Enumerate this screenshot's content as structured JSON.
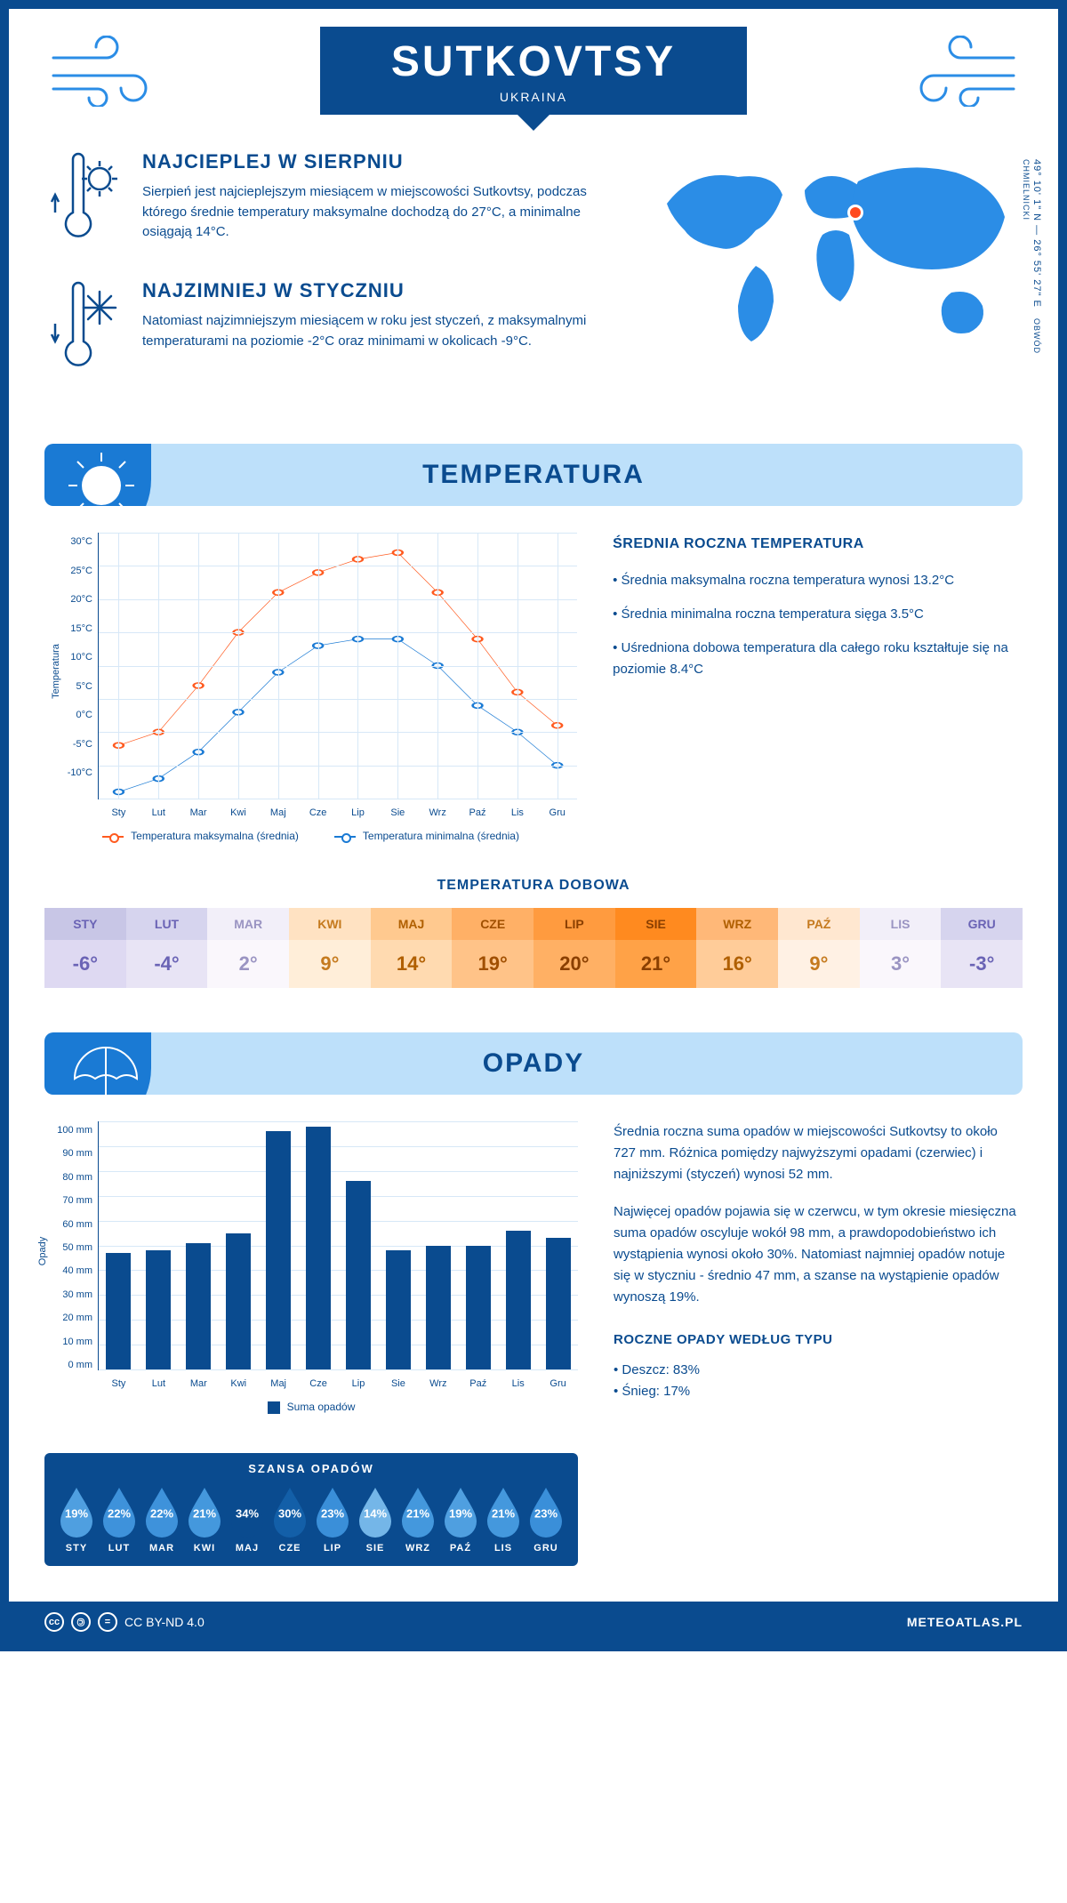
{
  "header": {
    "city": "SUTKOVTSY",
    "country": "UKRAINA"
  },
  "coords": "49° 10' 1\" N — 26° 55' 27\" E",
  "region": "OBWÓD CHMIELNICKI",
  "intro": {
    "hot_title": "NAJCIEPLEJ W SIERPNIU",
    "hot_text": "Sierpień jest najcieplejszym miesiącem w miejscowości Sutkovtsy, podczas którego średnie temperatury maksymalne dochodzą do 27°C, a minimalne osiągają 14°C.",
    "cold_title": "NAJZIMNIEJ W STYCZNIU",
    "cold_text": "Natomiast najzimniejszym miesiącem w roku jest styczeń, z maksymalnymi temperaturami na poziomie -2°C oraz minimami w okolicach -9°C."
  },
  "temperatura": {
    "section_title": "TEMPERATURA",
    "side_title": "ŚREDNIA ROCZNA TEMPERATURA",
    "b1": "• Średnia maksymalna roczna temperatura wynosi 13.2°C",
    "b2": "• Średnia minimalna roczna temperatura sięga 3.5°C",
    "b3": "• Uśredniona dobowa temperatura dla całego roku kształtuje się na poziomie 8.4°C",
    "chart": {
      "type": "line",
      "months": [
        "Sty",
        "Lut",
        "Mar",
        "Kwi",
        "Maj",
        "Cze",
        "Lip",
        "Sie",
        "Wrz",
        "Paź",
        "Lis",
        "Gru"
      ],
      "max_series": [
        -2,
        0,
        7,
        15,
        21,
        24,
        26,
        27,
        21,
        14,
        6,
        1
      ],
      "min_series": [
        -9,
        -7,
        -3,
        3,
        9,
        13,
        14,
        14,
        10,
        4,
        0,
        -5
      ],
      "max_color": "#ff5a1f",
      "min_color": "#1a7ad4",
      "ylim": [
        -10,
        30
      ],
      "ytick_step": 5,
      "ylabel": "Temperatura",
      "grid_color": "#d7e8f7",
      "legend_max": "Temperatura maksymalna (średnia)",
      "legend_min": "Temperatura minimalna (średnia)"
    },
    "dobowa_title": "TEMPERATURA DOBOWA",
    "dobowa": {
      "months": [
        "STY",
        "LUT",
        "MAR",
        "KWI",
        "MAJ",
        "CZE",
        "LIP",
        "SIE",
        "WRZ",
        "PAŹ",
        "LIS",
        "GRU"
      ],
      "values": [
        "-6°",
        "-4°",
        "2°",
        "9°",
        "14°",
        "19°",
        "20°",
        "21°",
        "16°",
        "9°",
        "3°",
        "-3°"
      ],
      "head_colors": [
        "#c8c6e6",
        "#d6d4ee",
        "#f2eff9",
        "#ffe2c2",
        "#ffc98f",
        "#ffb066",
        "#ff9b3f",
        "#ff8a1f",
        "#ffb878",
        "#ffe7d0",
        "#f2eff9",
        "#d6d4ee"
      ],
      "body_colors": [
        "#ded9f2",
        "#e8e4f5",
        "#faf7fc",
        "#ffeed9",
        "#ffdab0",
        "#ffc388",
        "#ffb064",
        "#ffa247",
        "#ffcc99",
        "#fff1e4",
        "#faf7fc",
        "#e8e4f5"
      ],
      "text_colors": [
        "#6a63b5",
        "#6a63b5",
        "#9a94c2",
        "#c57a1e",
        "#b05f00",
        "#a04f00",
        "#8a3f00",
        "#8a3f00",
        "#b05f00",
        "#c57a1e",
        "#9a94c2",
        "#6a63b5"
      ]
    }
  },
  "opady": {
    "section_title": "OPADY",
    "p1": "Średnia roczna suma opadów w miejscowości Sutkovtsy to około 727 mm. Różnica pomiędzy najwyższymi opadami (czerwiec) i najniższymi (styczeń) wynosi 52 mm.",
    "p2": "Najwięcej opadów pojawia się w czerwcu, w tym okresie miesięczna suma opadów oscyluje wokół 98 mm, a prawdopodobieństwo ich wystąpienia wynosi około 30%. Natomiast najmniej opadów notuje się w styczniu - średnio 47 mm, a szanse na wystąpienie opadów wynoszą 19%.",
    "chart": {
      "type": "bar",
      "months": [
        "Sty",
        "Lut",
        "Mar",
        "Kwi",
        "Maj",
        "Cze",
        "Lip",
        "Sie",
        "Wrz",
        "Paź",
        "Lis",
        "Gru"
      ],
      "values": [
        47,
        48,
        51,
        55,
        96,
        98,
        76,
        48,
        50,
        50,
        56,
        53
      ],
      "bar_color": "#0a4b8f",
      "ylim": [
        0,
        100
      ],
      "ytick_step": 10,
      "ylabel": "Opady",
      "legend": "Suma opadów"
    },
    "szansa_title": "SZANSA OPADÓW",
    "szansa": {
      "months": [
        "STY",
        "LUT",
        "MAR",
        "KWI",
        "MAJ",
        "CZE",
        "LIP",
        "SIE",
        "WRZ",
        "PAŹ",
        "LIS",
        "GRU"
      ],
      "pct": [
        "19%",
        "22%",
        "22%",
        "21%",
        "34%",
        "30%",
        "23%",
        "14%",
        "21%",
        "19%",
        "21%",
        "23%"
      ],
      "fill": [
        "#4f9fe0",
        "#3e92db",
        "#3e92db",
        "#4498dd",
        "#0a4b8f",
        "#135fa8",
        "#3a8fd9",
        "#74b6e8",
        "#4498dd",
        "#4f9fe0",
        "#4498dd",
        "#3a8fd9"
      ]
    },
    "roczne_title": "ROCZNE OPADY WEDŁUG TYPU",
    "roczne_deszcz": "• Deszcz: 83%",
    "roczne_snieg": "• Śnieg: 17%"
  },
  "footer": {
    "license": "CC BY-ND 4.0",
    "site": "METEOATLAS.PL"
  }
}
